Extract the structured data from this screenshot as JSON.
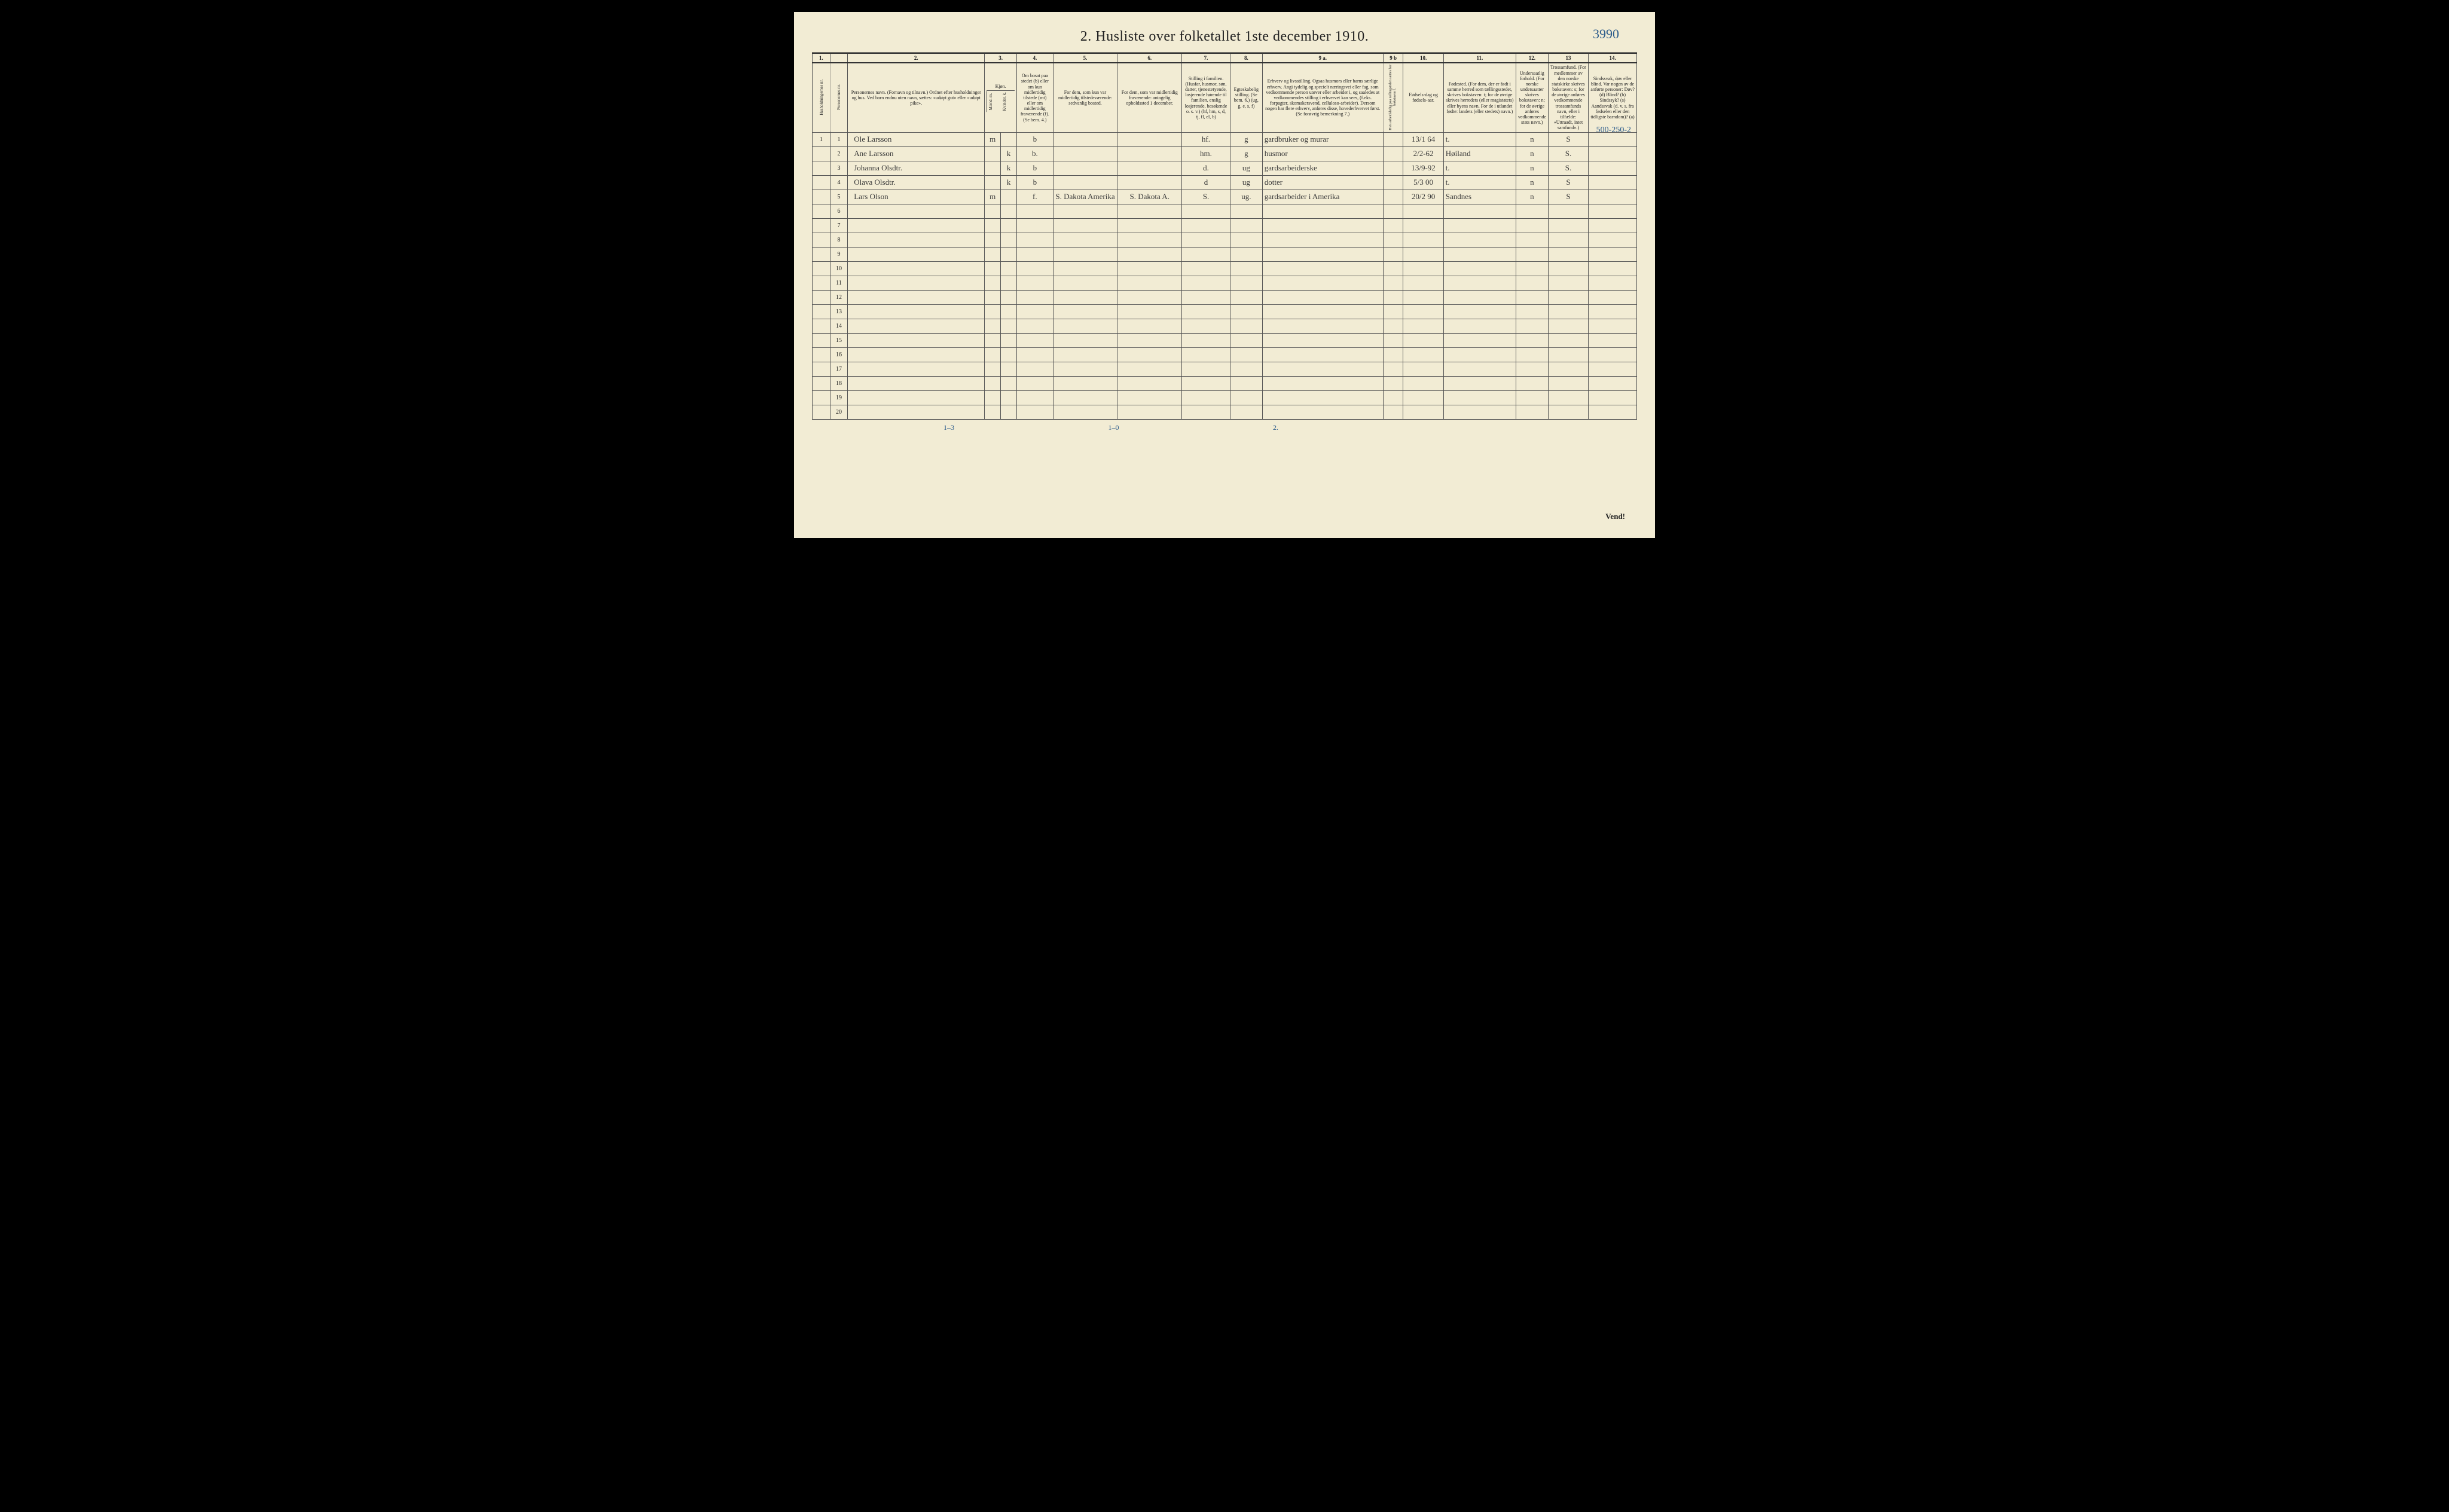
{
  "page_number_handwritten": "3990",
  "annotation_right": "500-250-2",
  "title": "2.  Husliste over folketallet 1ste december 1910.",
  "footer_turn": "Vend!",
  "footer_notes": {
    "left": "1–3",
    "mid": "1–0",
    "right": "2."
  },
  "column_numbers": [
    "1.",
    "",
    "2.",
    "3.",
    "4.",
    "5.",
    "6.",
    "7.",
    "8.",
    "9 a.",
    "9 b",
    "10.",
    "11.",
    "12.",
    "13",
    "14."
  ],
  "headers": {
    "c1": "Husholdningernes nr.",
    "c1b": "Personernes nr.",
    "c2": "Personernes navn.\n(Fornavn og tilnavn.)\nOrdnet efter husholdninger og hus.\nVed barn endnu uten navn, sættes: «udøpt gut» eller «udøpt pike».",
    "c3": "Kjøn.",
    "c3m": "Mænd.\nm.",
    "c3k": "Kvinder.\nk.",
    "c4": "Om bosat paa stedet (b) eller om kun midlertidig tilstede (mt) eller om midlertidig fraværende (f).\n(Se bem. 4.)",
    "c5": "For dem, som kun var midlertidig tilstedeværende:\nsedvanlig bosted.",
    "c6": "For dem, som var midlertidig fraværende:\nantagelig opholdssted 1 december.",
    "c7": "Stilling i familien.\n(Husfar, husmor, søn, datter, tjenestetyende, losjerende hørende til familien, enslig losjerende, besøkende o. s. v.)\n(hf, hm, s, d, tj, fl, el, b)",
    "c8": "Egteskabelig stilling.\n(Se bem. 6.)\n(ug, g, e, s, f)",
    "c9a": "Erhverv og livsstilling.\nOgsaa husmors eller barns særlige erhverv.\nAngi tydelig og specielt næringsvei eller fag, som vedkommende person utøver eller arbeider i, og saaledes at vedkommendes stilling i erhvervet kan sees, (f.eks. forpagter, skomakersvend, celluloso-arbeider). Dersom nogen har flere erhverv, anføres disse, hovederhvervet først.\n(Se forøvrig bemerkning 7.)",
    "c9b": "Hvis arbeidsledig paa tællingstiden sættes her bokstaven l.",
    "c10": "Fødsels-dag og fødsels-aar.",
    "c11": "Fødested.\n(For dem, der er født i samme herred som tællingsstedet, skrives bokstaven: t; for de øvrige skrives herredets (eller magistatets) eller byens navn. For de i utlandet fødte: landets (eller stedets) navn.)",
    "c12": "Undersaatlig forhold.\n(For norske undersaatter skrives bokstaven: n; for de øvrige anføres vedkommende stats navn.)",
    "c13": "Trossamfund.\n(For medlemmer av den norske statskirke skrives bokstaven: s; for de øvrige anføres vedkommende trossamfunds navn, eller i tilfælde: «Uttraadt, intet samfund».)",
    "c14": "Sindssvak, døv eller blind.\nVar nogen av de anførte personer:\nDøv? (d)\nBlind? (b)\nSindssyk? (s)\nAandssvak (d. v. s. fra fødselen eller den tidligste barndom)? (a)"
  },
  "rows": [
    {
      "hh": "1",
      "pn": "1",
      "name": "Ole Larsson",
      "sex": "m",
      "res": "b",
      "temp": "",
      "absent": "",
      "fam": "hf.",
      "mar": "g",
      "occ": "gardbruker og murar",
      "unemp": "",
      "birth": "13/1 64",
      "place": "t.",
      "nat": "n",
      "rel": "S",
      "dis": ""
    },
    {
      "hh": "",
      "pn": "2",
      "name": "Ane Larsson",
      "sex": "k",
      "res": "b.",
      "temp": "",
      "absent": "",
      "fam": "hm.",
      "mar": "g",
      "occ": "husmor",
      "unemp": "",
      "birth": "2/2-62",
      "place": "Høiland",
      "nat": "n",
      "rel": "S.",
      "dis": ""
    },
    {
      "hh": "",
      "pn": "3",
      "name": "Johanna Olsdtr.",
      "sex": "k",
      "res": "b",
      "temp": "",
      "absent": "",
      "fam": "d.",
      "mar": "ug",
      "occ": "gardsarbeiderske",
      "unemp": "",
      "birth": "13/9-92",
      "place": "t.",
      "nat": "n",
      "rel": "S.",
      "dis": ""
    },
    {
      "hh": "",
      "pn": "4",
      "name": "Olava Olsdtr.",
      "sex": "k",
      "res": "b",
      "temp": "",
      "absent": "",
      "fam": "d",
      "mar": "ug",
      "occ": "dotter",
      "unemp": "",
      "birth": "5/3 00",
      "place": "t.",
      "nat": "n",
      "rel": "S",
      "dis": ""
    },
    {
      "hh": "",
      "pn": "5",
      "name": "Lars Olson",
      "sex": "m",
      "res": "f.",
      "temp": "S. Dakota Amerika",
      "absent": "S. Dakota A.",
      "fam": "S.",
      "mar": "ug.",
      "occ": "gardsarbeider i Amerika",
      "unemp": "",
      "birth": "20/2 90",
      "place": "Sandnes",
      "nat": "n",
      "rel": "S",
      "dis": ""
    }
  ],
  "empty_row_count": 15,
  "colwidths_pct": [
    2.2,
    2.2,
    17,
    2,
    2,
    4.5,
    8,
    8,
    6,
    4,
    15,
    2.5,
    5,
    9,
    4,
    5,
    6
  ]
}
